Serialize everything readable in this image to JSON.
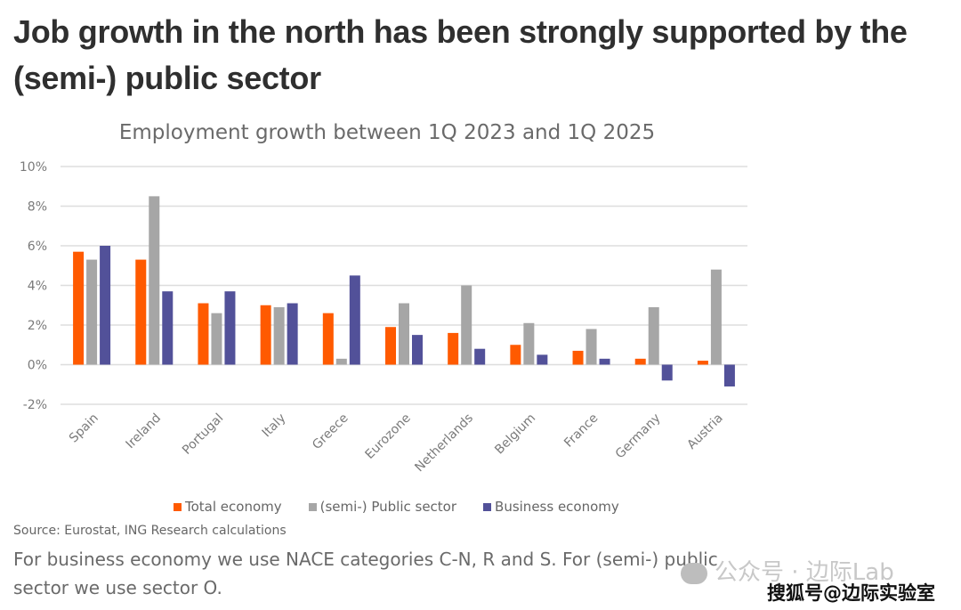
{
  "headline": "Job growth in the north has been strongly supported by the (semi-) public sector",
  "source": "Source: Eurostat, ING Research calculations",
  "note": "For business economy we use NACE categories C-N, R and S. For (semi-) public sector we use sector O.",
  "watermarks": {
    "wechat": "公众号 · 边际Lab",
    "sohu": "搜狐号@边际实验室"
  },
  "colors": {
    "total": "#ff5a00",
    "public": "#a6a6a6",
    "business": "#525199",
    "grid": "#dddddd"
  },
  "chart_data": {
    "type": "bar",
    "title": "Employment growth between 1Q 2023 and 1Q 2025",
    "xlabel": "",
    "ylabel": "",
    "ylim": [
      -2,
      10
    ],
    "yticks": [
      -2,
      0,
      2,
      4,
      6,
      8,
      10
    ],
    "ytick_labels": [
      "-2%",
      "0%",
      "2%",
      "4%",
      "6%",
      "8%",
      "10%"
    ],
    "grid": true,
    "legend_position": "bottom",
    "categories": [
      "Spain",
      "Ireland",
      "Portugal",
      "Italy",
      "Greece",
      "Eurozone",
      "Netherlands",
      "Belgium",
      "France",
      "Germany",
      "Austria"
    ],
    "series": [
      {
        "name": "Total economy",
        "values": [
          5.7,
          5.3,
          3.1,
          3.0,
          2.6,
          1.9,
          1.6,
          1.0,
          0.7,
          0.3,
          0.2
        ]
      },
      {
        "name": "(semi-) Public sector",
        "values": [
          5.3,
          8.5,
          2.6,
          2.9,
          0.3,
          3.1,
          4.0,
          2.1,
          1.8,
          2.9,
          4.8
        ]
      },
      {
        "name": "Business economy",
        "values": [
          6.0,
          3.7,
          3.7,
          3.1,
          4.5,
          1.5,
          0.8,
          0.5,
          0.3,
          -0.8,
          -1.1
        ]
      }
    ]
  }
}
